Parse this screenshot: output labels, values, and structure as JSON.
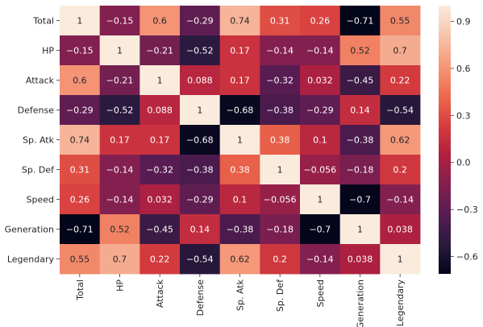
{
  "chart_data": {
    "type": "heatmap",
    "title": "",
    "xlabel": "",
    "ylabel": "",
    "labels": [
      "Total",
      "HP",
      "Attack",
      "Defense",
      "Sp. Atk",
      "Sp. Def",
      "Speed",
      "Generation",
      "Legendary"
    ],
    "matrix": [
      [
        1,
        -0.15,
        0.6,
        -0.29,
        0.74,
        0.31,
        0.26,
        -0.71,
        0.55
      ],
      [
        -0.15,
        1,
        -0.21,
        -0.52,
        0.17,
        -0.14,
        -0.14,
        0.52,
        0.7
      ],
      [
        0.6,
        -0.21,
        1,
        0.088,
        0.17,
        -0.32,
        0.032,
        -0.45,
        0.22
      ],
      [
        -0.29,
        -0.52,
        0.088,
        1,
        -0.68,
        -0.38,
        -0.29,
        0.14,
        -0.54
      ],
      [
        0.74,
        0.17,
        0.17,
        -0.68,
        1,
        0.38,
        0.1,
        -0.38,
        0.62
      ],
      [
        0.31,
        -0.14,
        -0.32,
        -0.38,
        0.38,
        1,
        -0.056,
        -0.18,
        0.2
      ],
      [
        0.26,
        -0.14,
        0.032,
        -0.29,
        0.1,
        -0.056,
        1,
        -0.7,
        -0.14
      ],
      [
        -0.71,
        0.52,
        -0.45,
        0.14,
        -0.38,
        -0.18,
        -0.7,
        1,
        0.038
      ],
      [
        0.55,
        0.7,
        0.22,
        -0.54,
        0.62,
        0.2,
        -0.14,
        0.038,
        1
      ]
    ],
    "color_range": [
      -0.71,
      1
    ],
    "colormap": "rocket",
    "colormap_stops": [
      "#03051a",
      "#2b1a3f",
      "#561c53",
      "#84204f",
      "#b0203f",
      "#d73d3e",
      "#ee6b4e",
      "#f5997a",
      "#f6c4ab",
      "#faebdd"
    ],
    "colorbar_ticks": [
      {
        "value": 0.9,
        "label": "0.9"
      },
      {
        "value": 0.6,
        "label": "0.6"
      },
      {
        "value": 0.3,
        "label": "0.3"
      },
      {
        "value": 0.0,
        "label": "0.0"
      },
      {
        "value": -0.3,
        "label": "−0.3"
      },
      {
        "value": -0.6,
        "label": "−0.6"
      }
    ],
    "grid": false,
    "annotations": true
  }
}
